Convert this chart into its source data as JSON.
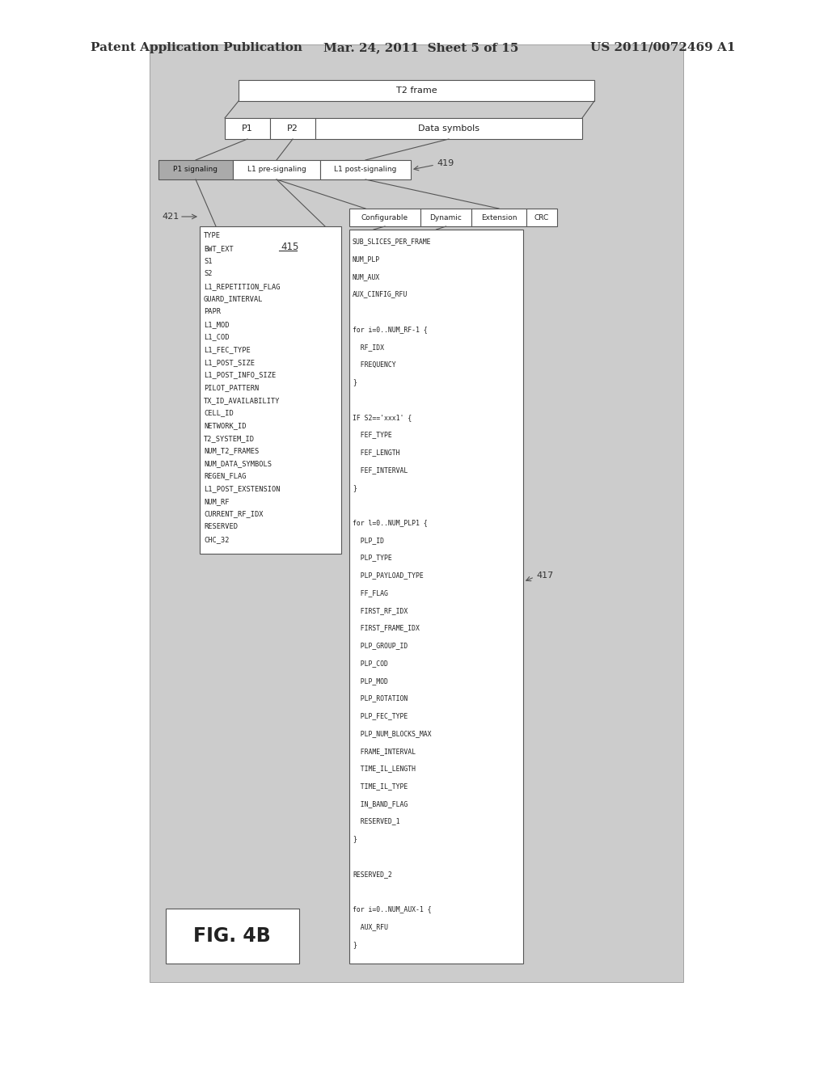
{
  "page_bg": "#ffffff",
  "header_text": "Patent Application Publication",
  "header_date": "Mar. 24, 2011  Sheet 5 of 15",
  "header_patent": "US 2011/0072469 A1",
  "fig_label": "FIG. 4B",
  "t2_frame_label": "T2 frame",
  "p1_label": "P1",
  "p2_label": "P2",
  "data_symbols_label": "Data symbols",
  "p1_sig_label": "P1 signaling",
  "l1_pre_label": "L1 pre-signaling",
  "l1_post_label": "L1 post-signaling",
  "label_419": "419",
  "label_421": "421",
  "label_415": "415",
  "label_417": "417",
  "configurable_label": "Configurable",
  "dynamic_label": "Dynamic",
  "extension_label": "Extension",
  "crc_label": "CRC",
  "left_box_items": [
    "TYPE",
    "BWT_EXT",
    "S1",
    "S2",
    "L1_REPETITION_FLAG",
    "GUARD_INTERVAL",
    "PAPR",
    "L1_MOD",
    "L1_COD",
    "L1_FEC_TYPE",
    "L1_POST_SIZE",
    "L1_POST_INFO_SIZE",
    "PILOT_PATTERN",
    "TX_ID_AVAILABILITY",
    "CELL_ID",
    "NETWORK_ID",
    "T2_SYSTEM_ID",
    "NUM_T2_FRAMES",
    "NUM_DATA_SYMBOLS",
    "REGEN_FLAG",
    "L1_POST_EXSTENSION",
    "NUM_RF",
    "CURRENT_RF_IDX",
    "RESERVED",
    "CHC_32"
  ],
  "right_box_items": [
    "SUB_SLICES_PER_FRAME",
    "NUM_PLP",
    "NUM_AUX",
    "AUX_CINFIG_RFU",
    "",
    "for i=0..NUM_RF-1 {",
    "  RF_IDX",
    "  FREQUENCY",
    "}",
    "",
    "IF S2=='xxx1' {",
    "  FEF_TYPE",
    "  FEF_LENGTH",
    "  FEF_INTERVAL",
    "}",
    "",
    "for l=0..NUM_PLP1 {",
    "  PLP_ID",
    "  PLP_TYPE",
    "  PLP_PAYLOAD_TYPE",
    "  FF_FLAG",
    "  FIRST_RF_IDX",
    "  FIRST_FRAME_IDX",
    "  PLP_GROUP_ID",
    "  PLP_COD",
    "  PLP_MOD",
    "  PLP_ROTATION",
    "  PLP_FEC_TYPE",
    "  PLP_NUM_BLOCKS_MAX",
    "  FRAME_INTERVAL",
    "  TIME_IL_LENGTH",
    "  TIME_IL_TYPE",
    "  IN_BAND_FLAG",
    "  RESERVED_1",
    "}",
    "",
    "RESERVED_2",
    "",
    "for i=0..NUM_AUX-1 {",
    "  AUX_RFU",
    "}"
  ],
  "diagram_bg": "#cccccc",
  "box_fill": "#ffffff",
  "box_edge": "#555555",
  "p1sig_fill": "#aaaaaa"
}
